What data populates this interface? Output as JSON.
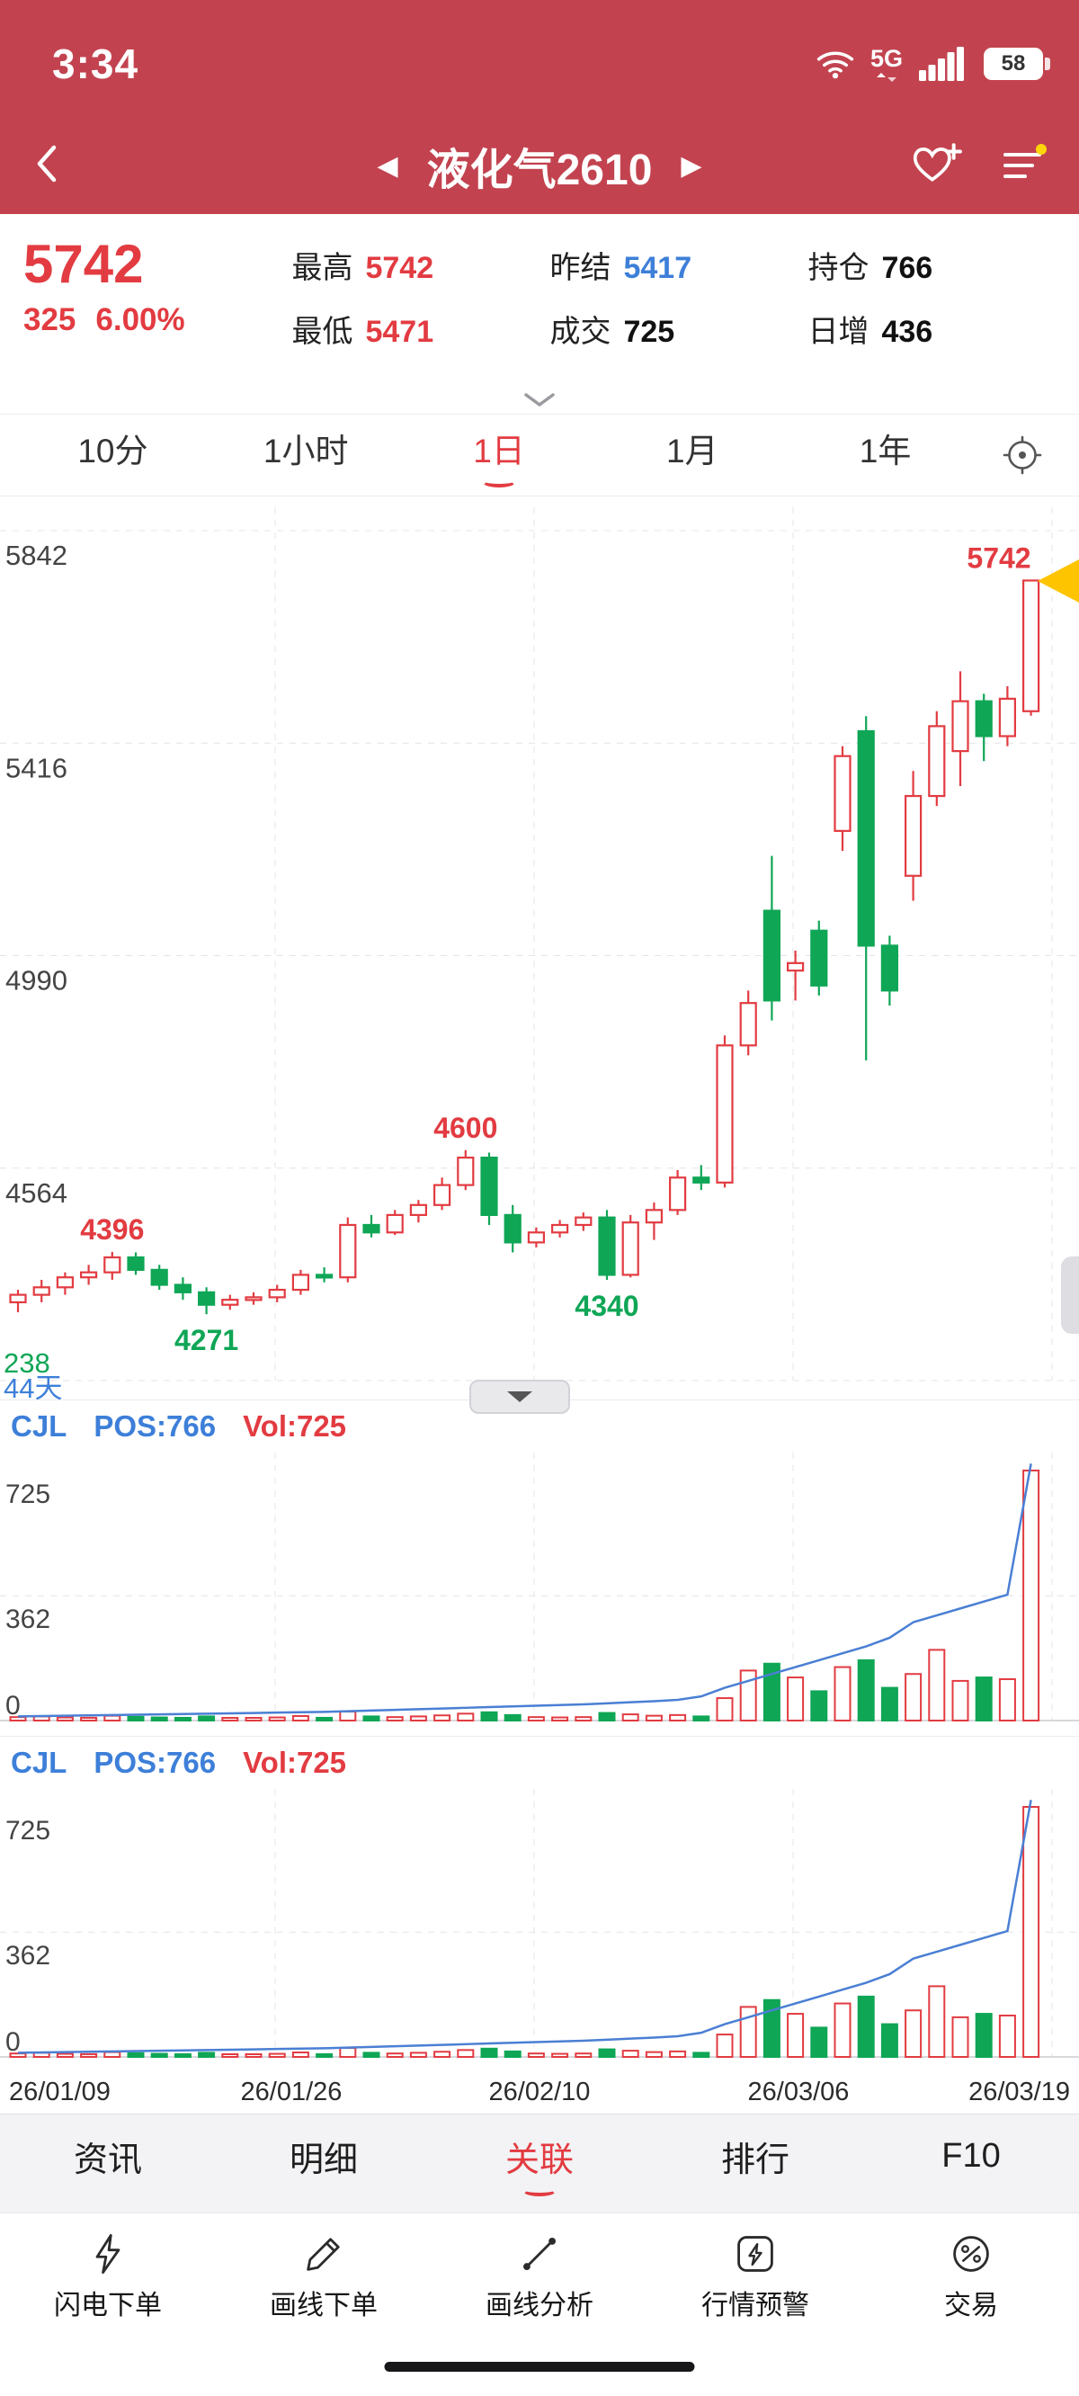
{
  "colors": {
    "header_red": "#c2434f",
    "up_red": "#e23b41",
    "down_green": "#0fa656",
    "ref_blue": "#3d7fd9",
    "marker_yellow": "#ffc400",
    "pos_line_blue": "#4a7fd4"
  },
  "status_bar": {
    "time": "3:34",
    "network": "5G",
    "battery_level": "58"
  },
  "nav": {
    "title": "液化气2610",
    "prev_symbol": "◀",
    "next_symbol": "▶"
  },
  "quote": {
    "price": "5742",
    "change": "325",
    "change_pct": "6.00%",
    "stats": [
      {
        "label": "最高",
        "value": "5742",
        "color": "red"
      },
      {
        "label": "最低",
        "value": "5471",
        "color": "red"
      },
      {
        "label": "昨结",
        "value": "5417",
        "color": "blue"
      },
      {
        "label": "成交",
        "value": "725",
        "color": "dark"
      },
      {
        "label": "持仓",
        "value": "766",
        "color": "dark"
      },
      {
        "label": "日增",
        "value": "436",
        "color": "dark"
      }
    ]
  },
  "period_tabs": {
    "items": [
      {
        "label": "10分",
        "active": false
      },
      {
        "label": "1小时",
        "active": false
      },
      {
        "label": "1日",
        "active": true
      },
      {
        "label": "1月",
        "active": false
      },
      {
        "label": "1年",
        "active": false
      }
    ]
  },
  "chart_data": {
    "type": "candlestick",
    "symbol": "液化气2610",
    "period": "1日",
    "y_ticks": [
      "5842",
      "5416",
      "4990",
      "4564"
    ],
    "y_bottom_label": "238",
    "days_label": "44天",
    "price_top": 5842,
    "price_bottom": 4138,
    "x_labels": [
      "26/01/09",
      "26/01/26",
      "26/02/10",
      "26/03/06",
      "26/03/19"
    ],
    "candles_ohlc": [
      [
        4295,
        4320,
        4275,
        4310
      ],
      [
        4310,
        4340,
        4295,
        4325
      ],
      [
        4325,
        4355,
        4310,
        4345
      ],
      [
        4345,
        4370,
        4330,
        4355
      ],
      [
        4355,
        4396,
        4340,
        4385
      ],
      [
        4385,
        4395,
        4350,
        4360
      ],
      [
        4360,
        4370,
        4320,
        4330
      ],
      [
        4330,
        4345,
        4300,
        4315
      ],
      [
        4315,
        4325,
        4271,
        4290
      ],
      [
        4290,
        4310,
        4280,
        4300
      ],
      [
        4300,
        4315,
        4290,
        4305
      ],
      [
        4305,
        4330,
        4295,
        4320
      ],
      [
        4320,
        4360,
        4310,
        4350
      ],
      [
        4350,
        4365,
        4335,
        4345
      ],
      [
        4345,
        4465,
        4335,
        4450
      ],
      [
        4450,
        4470,
        4425,
        4435
      ],
      [
        4435,
        4480,
        4430,
        4470
      ],
      [
        4470,
        4500,
        4455,
        4490
      ],
      [
        4490,
        4545,
        4480,
        4530
      ],
      [
        4530,
        4600,
        4520,
        4585
      ],
      [
        4585,
        4595,
        4450,
        4470
      ],
      [
        4470,
        4490,
        4395,
        4415
      ],
      [
        4415,
        4445,
        4405,
        4435
      ],
      [
        4435,
        4460,
        4425,
        4450
      ],
      [
        4450,
        4475,
        4438,
        4465
      ],
      [
        4465,
        4480,
        4340,
        4350
      ],
      [
        4350,
        4470,
        4345,
        4455
      ],
      [
        4455,
        4495,
        4420,
        4480
      ],
      [
        4480,
        4560,
        4470,
        4545
      ],
      [
        4545,
        4570,
        4520,
        4535
      ],
      [
        4535,
        4830,
        4525,
        4810
      ],
      [
        4810,
        4920,
        4790,
        4895
      ],
      [
        5080,
        5190,
        4860,
        4900
      ],
      [
        4960,
        5000,
        4900,
        4975
      ],
      [
        5040,
        5060,
        4910,
        4930
      ],
      [
        5240,
        5410,
        5200,
        5390
      ],
      [
        5440,
        5470,
        4780,
        5010
      ],
      [
        5010,
        5030,
        4890,
        4920
      ],
      [
        5150,
        5360,
        5100,
        5310
      ],
      [
        5310,
        5480,
        5290,
        5450
      ],
      [
        5400,
        5560,
        5330,
        5500
      ],
      [
        5500,
        5515,
        5380,
        5430
      ],
      [
        5430,
        5530,
        5410,
        5505
      ],
      [
        5480,
        5742,
        5471,
        5742
      ]
    ],
    "annotations": [
      {
        "index": 4,
        "text": "4396",
        "color": "red",
        "position": "above"
      },
      {
        "index": 8,
        "text": "4271",
        "color": "green",
        "position": "below"
      },
      {
        "index": 19,
        "text": "4600",
        "color": "red",
        "position": "above"
      },
      {
        "index": 25,
        "text": "4340",
        "color": "green",
        "position": "below"
      },
      {
        "index": 43,
        "text": "5742",
        "color": "red",
        "position": "above"
      }
    ],
    "latest_price_marker": true,
    "volume": {
      "indicator": "CJL",
      "pos_label": "POS:766",
      "vol_label": "Vol:725",
      "y_ticks": [
        "725",
        "362",
        "0"
      ],
      "values": [
        10,
        12,
        9,
        8,
        14,
        11,
        9,
        8,
        12,
        7,
        6,
        9,
        13,
        8,
        26,
        12,
        10,
        12,
        15,
        20,
        24,
        16,
        10,
        9,
        10,
        22,
        18,
        14,
        16,
        12,
        65,
        145,
        165,
        125,
        85,
        155,
        175,
        95,
        135,
        205,
        115,
        125,
        120,
        725
      ],
      "pos_line": [
        12,
        13,
        14,
        15,
        16,
        17,
        18,
        19,
        20,
        21,
        22,
        23,
        24,
        25,
        27,
        29,
        31,
        33,
        35,
        37,
        39,
        41,
        43,
        45,
        47,
        50,
        53,
        56,
        60,
        70,
        95,
        115,
        135,
        155,
        175,
        195,
        215,
        240,
        285,
        305,
        325,
        345,
        365,
        766
      ]
    }
  },
  "bottom_tabs": {
    "items": [
      {
        "label": "资讯",
        "active": false
      },
      {
        "label": "明细",
        "active": false
      },
      {
        "label": "关联",
        "active": true
      },
      {
        "label": "排行",
        "active": false
      },
      {
        "label": "F10",
        "active": false
      }
    ]
  },
  "toolbar": {
    "items": [
      {
        "label": "闪电下单",
        "icon": "lightning"
      },
      {
        "label": "画线下单",
        "icon": "pencil"
      },
      {
        "label": "画线分析",
        "icon": "trendline"
      },
      {
        "label": "行情预警",
        "icon": "alert"
      },
      {
        "label": "交易",
        "icon": "trade"
      }
    ]
  }
}
